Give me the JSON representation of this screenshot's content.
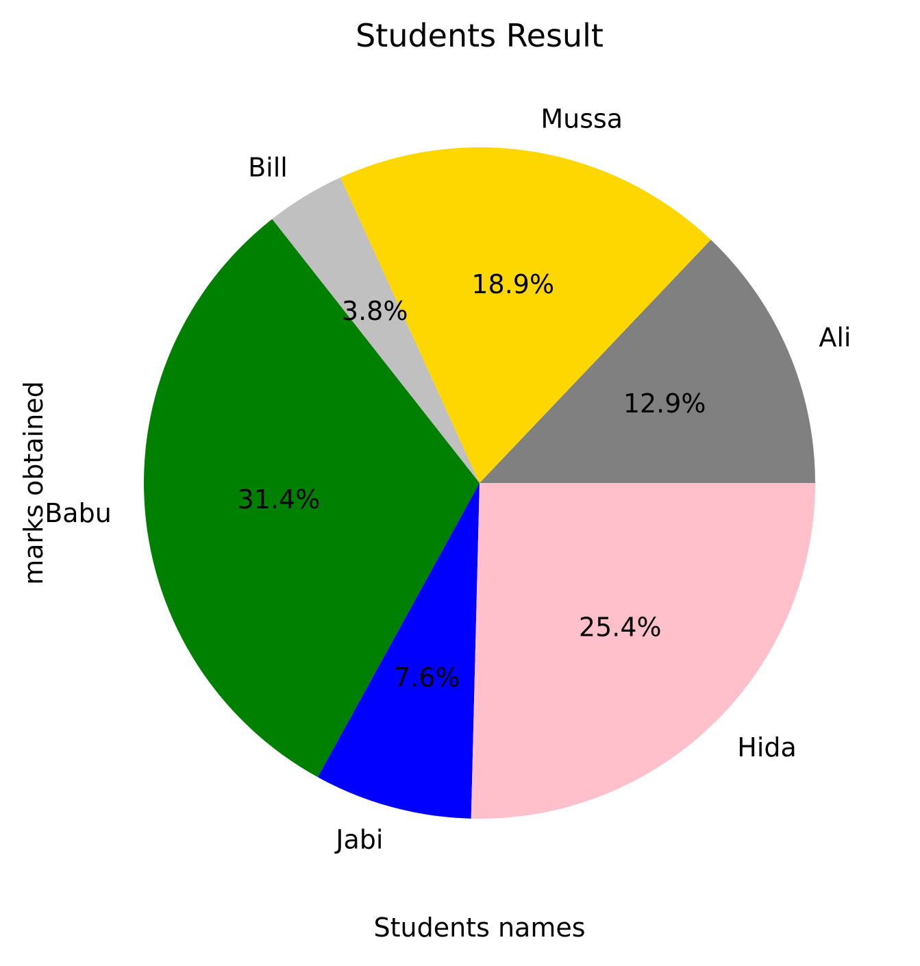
{
  "chart_data": {
    "type": "pie",
    "title": "Students Result",
    "xlabel": "Students names",
    "ylabel": "marks obtained",
    "start_angle_deg": 0,
    "direction": "counterclockwise",
    "slices": [
      {
        "label": "Ali",
        "value": 12.9,
        "pct_label": "12.9%",
        "color": "#808080"
      },
      {
        "label": "Mussa",
        "value": 18.9,
        "pct_label": "18.9%",
        "color": "#FFD700"
      },
      {
        "label": "Bill",
        "value": 3.8,
        "pct_label": "3.8%",
        "color": "#C0C0C0"
      },
      {
        "label": "Babu",
        "value": 31.4,
        "pct_label": "31.4%",
        "color": "#008000"
      },
      {
        "label": "Jabi",
        "value": 7.6,
        "pct_label": "7.6%",
        "color": "#0000FF"
      },
      {
        "label": "Hida",
        "value": 25.4,
        "pct_label": "25.4%",
        "color": "#FFC0CB"
      }
    ]
  }
}
